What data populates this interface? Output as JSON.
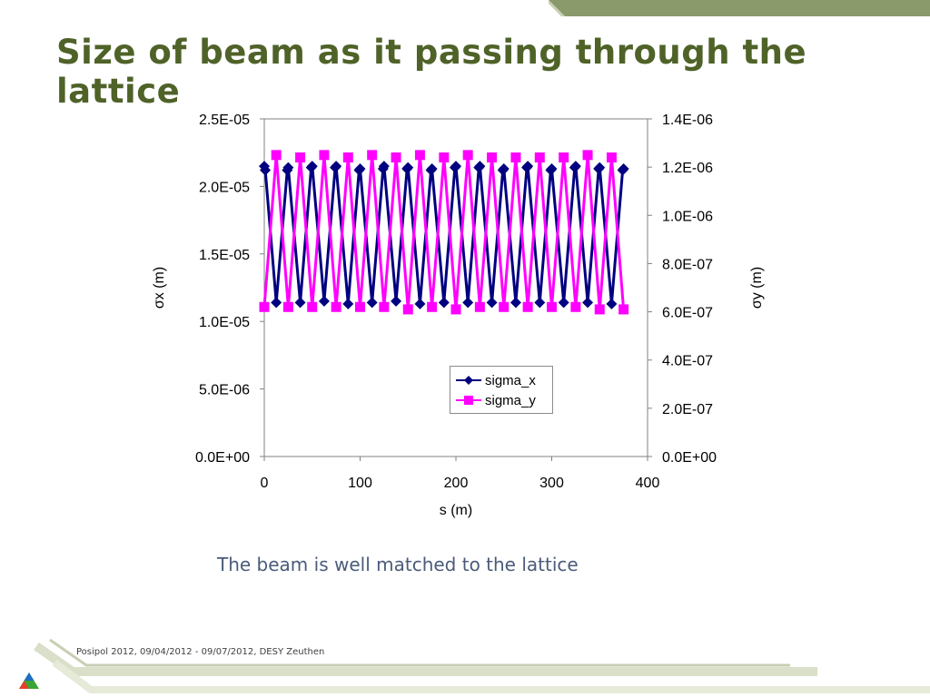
{
  "slide": {
    "title": "Size of beam as it passing through the lattice",
    "caption": "The beam is well matched to the lattice",
    "footer": "Posipol 2012, 09/04/2012 - 09/07/2012, DESY Zeuthen"
  },
  "colors": {
    "title": "#4f6228",
    "accent_olive": "#8b9a6b",
    "sigma_x": "#000080",
    "sigma_y": "#ff00ff"
  },
  "chart_data": {
    "type": "line",
    "xlabel": "s (m)",
    "ylabel_left": "σx (m)",
    "ylabel_right": "σy (m)",
    "xlim": [
      0,
      400
    ],
    "ylim_left": [
      0,
      2.5e-05
    ],
    "ylim_right": [
      0,
      1.4e-06
    ],
    "x_ticks": [
      "0",
      "100",
      "200",
      "300",
      "400"
    ],
    "y_ticks_left": [
      "0.0E+00",
      "5.0E-06",
      "1.0E-05",
      "1.5E-05",
      "2.0E-05",
      "2.5E-05"
    ],
    "y_ticks_right": [
      "0.0E+00",
      "2.0E-07",
      "4.0E-07",
      "6.0E-07",
      "8.0E-07",
      "1.0E-06",
      "1.2E-06",
      "1.4E-06"
    ],
    "legend_position": "lower-right",
    "series": [
      {
        "name": "sigma_x",
        "axis": "left",
        "color": "#000080",
        "marker": "diamond",
        "x": [
          0,
          1,
          12.5,
          24,
          25,
          37.5,
          49,
          50,
          62.5,
          74,
          75,
          87.5,
          99,
          100,
          112.5,
          124,
          125,
          137.5,
          149,
          150,
          162.5,
          174,
          175,
          187.5,
          199,
          200,
          212.5,
          224,
          225,
          237.5,
          249,
          250,
          262.5,
          274,
          275,
          287.5,
          299,
          300,
          312.5,
          324,
          325,
          337.5,
          349,
          350,
          362.5,
          374,
          375
        ],
        "values": [
          2.15e-05,
          2.12e-05,
          1.14e-05,
          2.12e-05,
          2.14e-05,
          1.14e-05,
          2.14e-05,
          2.15e-05,
          1.15e-05,
          2.14e-05,
          2.15e-05,
          1.13e-05,
          2.12e-05,
          2.13e-05,
          1.14e-05,
          2.13e-05,
          2.15e-05,
          1.15e-05,
          2.13e-05,
          2.14e-05,
          1.13e-05,
          2.12e-05,
          2.13e-05,
          1.14e-05,
          2.14e-05,
          2.15e-05,
          1.14e-05,
          2.14e-05,
          2.15e-05,
          1.14e-05,
          2.12e-05,
          2.13e-05,
          1.14e-05,
          2.14e-05,
          2.15e-05,
          1.14e-05,
          2.12e-05,
          2.13e-05,
          1.14e-05,
          2.14e-05,
          2.15e-05,
          1.14e-05,
          2.13e-05,
          2.14e-05,
          1.13e-05,
          2.12e-05,
          2.13e-05
        ]
      },
      {
        "name": "sigma_y",
        "axis": "right",
        "color": "#ff00ff",
        "marker": "square",
        "x": [
          0,
          12.5,
          25,
          37.5,
          50,
          62.5,
          75,
          87.5,
          100,
          112.5,
          125,
          137.5,
          150,
          162.5,
          175,
          187.5,
          200,
          212.5,
          225,
          237.5,
          250,
          262.5,
          275,
          287.5,
          300,
          312.5,
          325,
          337.5,
          350,
          362.5,
          375
        ],
        "values": [
          6.2e-07,
          1.25e-06,
          6.2e-07,
          1.24e-06,
          6.2e-07,
          1.25e-06,
          6.2e-07,
          1.24e-06,
          6.2e-07,
          1.25e-06,
          6.2e-07,
          1.24e-06,
          6.1e-07,
          1.25e-06,
          6.2e-07,
          1.24e-06,
          6.1e-07,
          1.25e-06,
          6.2e-07,
          1.24e-06,
          6.2e-07,
          1.24e-06,
          6.2e-07,
          1.24e-06,
          6.2e-07,
          1.24e-06,
          6.2e-07,
          1.25e-06,
          6.1e-07,
          1.24e-06,
          6.1e-07
        ]
      }
    ]
  }
}
